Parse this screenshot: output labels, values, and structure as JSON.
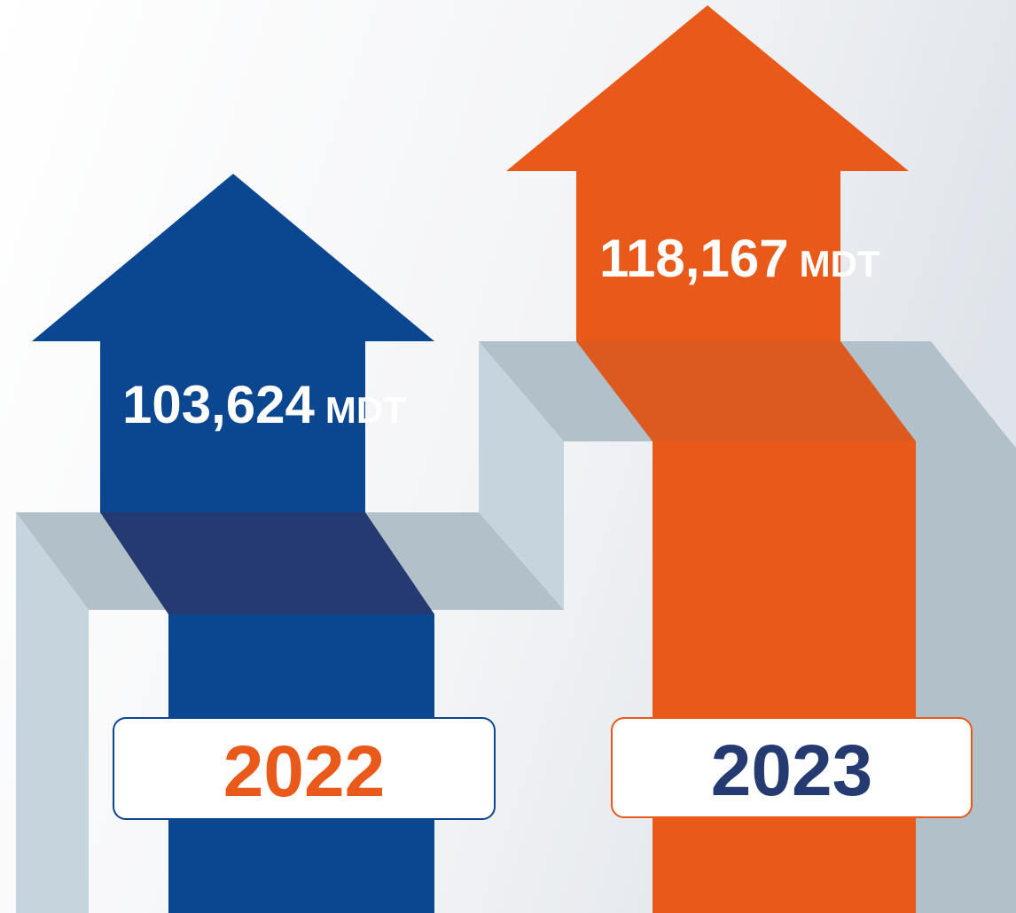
{
  "items": [
    {
      "value": "103,624",
      "unit": "MDT",
      "year": "2022"
    },
    {
      "value": "118,167",
      "unit": "MDT",
      "year": "2023"
    }
  ]
}
